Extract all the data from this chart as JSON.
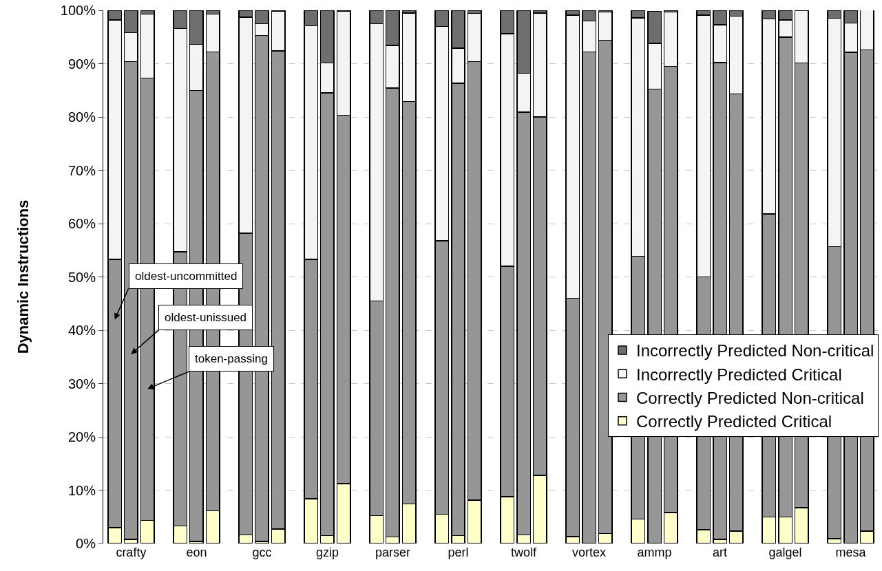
{
  "chart_data": {
    "type": "bar",
    "stacked": true,
    "ylabel": "Dynamic Instructions",
    "categories": [
      null,
      "crafty",
      null,
      null,
      "eon",
      null,
      null,
      "gcc",
      null,
      null,
      "gzip",
      null,
      null,
      "parser",
      null,
      null,
      "perl",
      null,
      null,
      "twolf",
      null,
      null,
      "vortex",
      null,
      null,
      "ammp",
      null,
      null,
      "art",
      null,
      null,
      "galgel",
      null,
      null,
      "mesa",
      null
    ],
    "series": [
      {
        "name": "Correctly Predicted Critical",
        "color": "#ffffcc",
        "values": [
          3,
          0.8,
          4.3,
          3.3,
          0.4,
          6.1,
          1.6,
          0.4,
          2.7,
          8.4,
          1.5,
          11.2,
          5.2,
          1.2,
          7.4,
          5.5,
          1.5,
          8.1,
          8.8,
          1.6,
          12.8,
          1.3,
          0,
          1.9,
          4.6,
          null,
          5.8,
          2.6,
          0.8,
          2.3,
          5,
          5,
          6.7,
          0.9,
          0,
          2.3
        ]
      },
      {
        "name": "Correctly Predicted Non-critical",
        "color": "#969696",
        "values": [
          50.3,
          89.6,
          83,
          51.4,
          84.6,
          86.1,
          56.6,
          94.9,
          89.7,
          44.9,
          83,
          69.1,
          40.3,
          84.2,
          75.5,
          51.3,
          84.8,
          82.3,
          43.2,
          79.3,
          67.2,
          44.7,
          92.2,
          92.5,
          49.3,
          85.2,
          83.7,
          47.4,
          89.4,
          82,
          56.8,
          90,
          83.4,
          54.8,
          92.1,
          90.3
        ]
      },
      {
        "name": "Incorrectly Predicted Critical",
        "color": "#f4f4f4",
        "values": [
          44.9,
          5.4,
          12,
          41.9,
          8.6,
          7.1,
          40.5,
          2.2,
          7.4,
          43.8,
          5.6,
          19.5,
          52,
          8,
          16.6,
          40.2,
          6.6,
          9,
          43.6,
          7.3,
          19.5,
          53.1,
          5.8,
          5.3,
          44.7,
          8.6,
          10.2,
          49.1,
          7.1,
          14.6,
          36.6,
          3.2,
          9.9,
          42.8,
          5.5,
          7.5
        ]
      },
      {
        "name": "Incorrectly Predicted Non-critical",
        "color": "#6e6e6e",
        "values": [
          1.8,
          4.2,
          0.7,
          3.4,
          6.4,
          0.7,
          1.3,
          2.5,
          0.2,
          2.9,
          9.9,
          0.2,
          2.5,
          6.6,
          0.5,
          3,
          7.1,
          0.6,
          4.4,
          11.8,
          0.5,
          0.9,
          2,
          0.3,
          1.4,
          6,
          0.3,
          0.9,
          2.7,
          1.1,
          1.6,
          1.8,
          null,
          1.5,
          2.4,
          null
        ]
      }
    ],
    "ylim": [
      0,
      100
    ],
    "yticks": [
      {
        "value": 0,
        "label": "0%"
      },
      {
        "value": 10,
        "label": "10%"
      },
      {
        "value": 20,
        "label": "20%"
      },
      {
        "value": 30,
        "label": "30%"
      },
      {
        "value": 40,
        "label": "40%"
      },
      {
        "value": 50,
        "label": "50%"
      },
      {
        "value": 60,
        "label": "60%"
      },
      {
        "value": 70,
        "label": "70%"
      },
      {
        "value": 80,
        "label": "80%"
      },
      {
        "value": 90,
        "label": "90%"
      },
      {
        "value": 100,
        "label": "100%"
      }
    ],
    "grid": "y",
    "legend": "bottom right",
    "annotations": [
      "oldest-uncommitted",
      "oldest-unissued",
      "token-passing"
    ]
  }
}
